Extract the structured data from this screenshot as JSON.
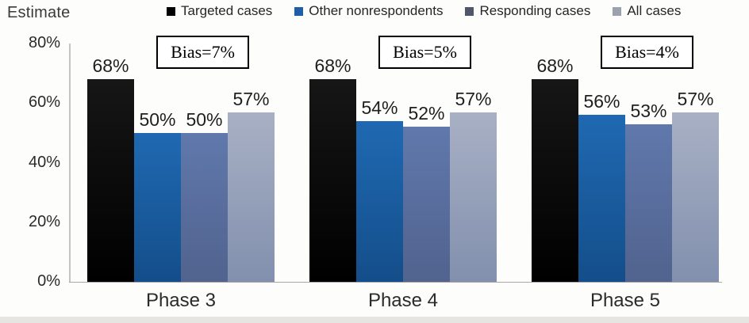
{
  "chart_data": {
    "type": "bar",
    "title": "",
    "axis_title": "Estimate",
    "categories": [
      "Phase 3",
      "Phase 4",
      "Phase 5"
    ],
    "series": [
      {
        "name": "Targeted cases",
        "values": [
          68,
          68,
          68
        ],
        "color_top": "#161616",
        "color_bottom": "#000000",
        "legend_marker_color": "#000000"
      },
      {
        "name": "Other nonrespondents",
        "values": [
          50,
          54,
          56
        ],
        "color_top": "#1f69b2",
        "color_bottom": "#144e8a",
        "legend_marker_color": "#1f5fa8"
      },
      {
        "name": "Responding cases",
        "values": [
          50,
          52,
          53
        ],
        "color_top": "#6078ac",
        "color_bottom": "#51638e",
        "legend_marker_color": "#4f586b"
      },
      {
        "name": "All cases",
        "values": [
          57,
          57,
          57
        ],
        "color_top": "#a8b0c4",
        "color_bottom": "#8290ae",
        "legend_marker_color": "#9ba1ad"
      }
    ],
    "value_label_suffix": "%",
    "annotations": [
      {
        "category": "Phase 3",
        "text": "Bias=7%"
      },
      {
        "category": "Phase 4",
        "text": "Bias=5%"
      },
      {
        "category": "Phase 5",
        "text": "Bias=4%"
      }
    ],
    "ylim": [
      0,
      80
    ],
    "ytick_labels": [
      "0%",
      "20%",
      "40%",
      "60%",
      "80%"
    ],
    "grid": false,
    "legend_position": "top",
    "colors": {
      "axis_line": "#c4c4c4",
      "baseline": "#a9a9a9",
      "text": "#2b2b2b",
      "bias_box_border": "#000000",
      "page_edge_strip": "#e7e5e2"
    }
  }
}
